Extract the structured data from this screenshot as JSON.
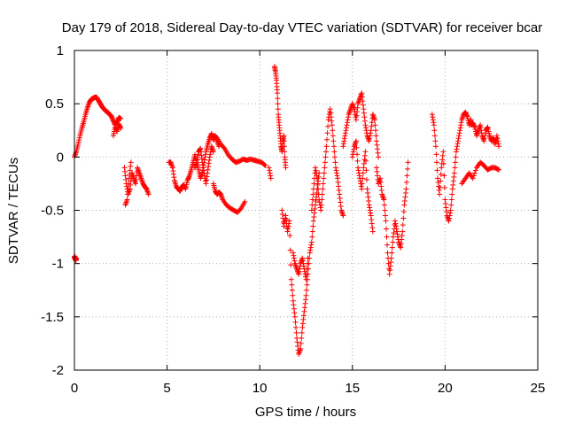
{
  "chart_data": {
    "type": "scatter",
    "title": "Day 179 of 2018, Sidereal Day-to-day VTEC variation (SDTVAR) for receiver bcar",
    "xlabel": "GPS time / hours",
    "ylabel": "SDTVAR / TECUs",
    "xlim": [
      0,
      25
    ],
    "ylim": [
      -2,
      1
    ],
    "xticks": [
      0,
      5,
      10,
      15,
      20,
      25
    ],
    "xtick_labels": [
      "0",
      "5",
      "10",
      "15",
      "20",
      "25"
    ],
    "yticks": [
      1,
      0.5,
      0,
      -0.5,
      -1,
      -1.5,
      -2
    ],
    "ytick_labels": [
      "1",
      "0.5",
      "0",
      "-0.5",
      "-1",
      "-1.5",
      "-2"
    ],
    "grid": true,
    "marker": "+",
    "marker_color": "#ff0000",
    "series": [
      {
        "name": "SDTVAR",
        "segments": [
          {
            "x": [
              0.0,
              0.02,
              0.05,
              0.08,
              0.1
            ],
            "y": [
              -0.95,
              -0.93,
              -0.96,
              -0.97,
              -0.95
            ]
          },
          {
            "x": [
              0.0,
              0.1,
              0.2,
              0.3,
              0.4,
              0.5,
              0.6,
              0.7,
              0.8,
              0.9,
              1.0,
              1.1,
              1.2,
              1.3,
              1.4,
              1.5,
              1.6,
              1.7,
              1.8,
              1.9,
              2.0,
              2.1,
              2.2,
              2.3,
              2.4,
              2.5
            ],
            "y": [
              0.0,
              0.05,
              0.12,
              0.2,
              0.27,
              0.33,
              0.4,
              0.46,
              0.51,
              0.54,
              0.55,
              0.56,
              0.56,
              0.53,
              0.5,
              0.47,
              0.45,
              0.43,
              0.42,
              0.4,
              0.38,
              0.34,
              0.3,
              0.33,
              0.37,
              0.36
            ]
          },
          {
            "x": [
              2.1,
              2.2,
              2.3,
              2.4,
              2.5
            ],
            "y": [
              0.2,
              0.28,
              0.24,
              0.31,
              0.27
            ]
          },
          {
            "x": [
              2.7,
              2.8,
              2.9,
              3.0,
              3.1,
              3.2,
              3.3,
              3.4,
              3.5,
              3.6,
              3.7,
              3.8,
              3.9,
              4.0
            ],
            "y": [
              -0.1,
              -0.25,
              -0.35,
              -0.3,
              -0.15,
              -0.2,
              -0.25,
              -0.1,
              -0.15,
              -0.2,
              -0.25,
              -0.28,
              -0.3,
              -0.35
            ]
          },
          {
            "x": [
              2.75,
              2.85,
              2.95,
              3.05
            ],
            "y": [
              -0.45,
              -0.4,
              -0.2,
              -0.05
            ]
          },
          {
            "x": [
              5.1,
              5.2,
              5.3,
              5.4,
              5.5,
              5.6,
              5.7,
              5.8,
              5.9,
              6.0,
              6.1,
              6.2,
              6.3,
              6.4,
              6.5,
              6.6,
              6.7,
              6.8,
              6.9,
              7.0,
              7.1,
              7.2,
              7.3,
              7.4,
              7.5,
              7.6,
              7.7,
              7.8
            ],
            "y": [
              -0.05,
              -0.05,
              -0.1,
              -0.22,
              -0.28,
              -0.3,
              -0.32,
              -0.28,
              -0.26,
              -0.3,
              -0.22,
              -0.18,
              -0.12,
              -0.05,
              0.02,
              -0.05,
              -0.12,
              -0.2,
              -0.15,
              -0.05,
              0.05,
              0.12,
              0.18,
              0.22,
              0.16,
              0.2,
              0.15,
              0.1
            ]
          },
          {
            "x": [
              6.5,
              6.6,
              6.7,
              6.8,
              6.9,
              7.0,
              7.1,
              7.2,
              7.3,
              7.4,
              7.5
            ],
            "y": [
              -0.1,
              -0.05,
              0.05,
              0.08,
              -0.05,
              -0.15,
              -0.25,
              -0.12,
              0.0,
              0.1,
              0.05
            ]
          },
          {
            "x": [
              7.5,
              7.7,
              7.9,
              8.1,
              8.3,
              8.5,
              8.7,
              8.9,
              9.1,
              9.3,
              9.5,
              9.7,
              9.9,
              10.1,
              10.3
            ],
            "y": [
              0.2,
              0.18,
              0.12,
              0.08,
              0.02,
              -0.02,
              -0.05,
              -0.04,
              -0.02,
              -0.03,
              -0.02,
              -0.03,
              -0.04,
              -0.05,
              -0.08
            ]
          },
          {
            "x": [
              7.5,
              7.6,
              7.7,
              7.8,
              7.9,
              8.0,
              8.2,
              8.4,
              8.6,
              8.8,
              9.0,
              9.2
            ],
            "y": [
              -0.25,
              -0.32,
              -0.35,
              -0.33,
              -0.35,
              -0.4,
              -0.45,
              -0.48,
              -0.5,
              -0.52,
              -0.48,
              -0.42
            ]
          },
          {
            "x": [
              10.5,
              10.6
            ],
            "y": [
              -0.1,
              -0.2
            ]
          },
          {
            "x": [
              10.8,
              10.85,
              10.9,
              10.95,
              11.0,
              11.05,
              11.1,
              11.15,
              11.2,
              11.25,
              11.3,
              11.35,
              11.4
            ],
            "y": [
              0.85,
              0.8,
              0.72,
              0.6,
              0.4,
              0.3,
              0.2,
              0.1,
              0.05,
              0.15,
              0.2,
              0.0,
              -0.1
            ]
          },
          {
            "x": [
              11.2,
              11.3,
              11.4,
              11.5,
              11.6,
              11.7,
              11.8,
              11.9,
              12.0,
              12.1,
              12.2,
              12.3,
              12.4,
              12.5,
              12.6,
              12.7,
              12.8,
              12.9,
              13.0,
              13.1,
              13.2
            ],
            "y": [
              -0.5,
              -0.65,
              -0.55,
              -0.7,
              -0.6,
              -1.15,
              -1.35,
              -1.5,
              -1.7,
              -1.85,
              -1.8,
              -1.6,
              -1.45,
              -1.3,
              -1.1,
              -0.9,
              -0.8,
              -0.6,
              -0.45,
              -0.3,
              -0.15
            ]
          },
          {
            "x": [
              11.8,
              11.9,
              12.0,
              12.1,
              12.2,
              12.3,
              12.4,
              12.5,
              12.6
            ],
            "y": [
              -0.9,
              -1.0,
              -1.05,
              -1.1,
              -1.0,
              -0.95,
              -1.05,
              -1.15,
              -0.95
            ]
          },
          {
            "x": [
              12.8,
              12.9,
              13.0,
              13.1,
              13.2,
              13.3,
              13.4,
              13.5,
              13.6,
              13.7,
              13.8,
              13.9,
              14.0,
              14.1,
              14.2,
              14.3,
              14.4,
              14.5
            ],
            "y": [
              -0.5,
              -0.3,
              -0.1,
              -0.2,
              -0.4,
              -0.5,
              -0.3,
              -0.1,
              0.1,
              0.35,
              0.45,
              0.3,
              0.1,
              -0.1,
              -0.2,
              -0.35,
              -0.5,
              -0.55
            ]
          },
          {
            "x": [
              14.5,
              14.6,
              14.7,
              14.8,
              14.9,
              15.0,
              15.1,
              15.2,
              15.3,
              15.4,
              15.5,
              15.6,
              15.7,
              15.8,
              15.9,
              16.0,
              16.1,
              16.2,
              16.3,
              16.4
            ],
            "y": [
              0.1,
              0.2,
              0.3,
              0.4,
              0.45,
              0.5,
              0.45,
              0.35,
              0.5,
              0.55,
              0.6,
              0.45,
              0.3,
              0.2,
              0.15,
              0.25,
              0.4,
              0.35,
              0.15,
              0.0
            ]
          },
          {
            "x": [
              15.0,
              15.1,
              15.2,
              15.3,
              15.4,
              15.5,
              15.6,
              15.7,
              15.8,
              15.9,
              16.0,
              16.1
            ],
            "y": [
              0.0,
              0.1,
              0.15,
              -0.1,
              -0.2,
              -0.3,
              -0.1,
              0.05,
              -0.3,
              -0.45,
              -0.55,
              -0.7
            ]
          },
          {
            "x": [
              16.3,
              16.4,
              16.5,
              16.6,
              16.7,
              16.8,
              16.9,
              17.0,
              17.1,
              17.2,
              17.3,
              17.4,
              17.5,
              17.6,
              17.7,
              17.8,
              17.9,
              18.0
            ],
            "y": [
              -0.1,
              -0.25,
              -0.2,
              -0.35,
              -0.4,
              -0.6,
              -0.9,
              -1.1,
              -0.95,
              -0.75,
              -0.6,
              -0.7,
              -0.8,
              -0.85,
              -0.7,
              -0.45,
              -0.3,
              -0.05
            ]
          },
          {
            "x": [
              19.3,
              19.4,
              19.5,
              19.6,
              19.7,
              19.8,
              19.9,
              20.0,
              20.1,
              20.2,
              20.3,
              20.4,
              20.5,
              20.6,
              20.7,
              20.8,
              20.9,
              21.0,
              21.1,
              21.2,
              21.3,
              21.4
            ],
            "y": [
              0.4,
              0.3,
              0.1,
              -0.2,
              -0.35,
              -0.1,
              0.05,
              -0.4,
              -0.55,
              -0.6,
              -0.5,
              -0.3,
              -0.15,
              0.05,
              0.15,
              0.25,
              0.35,
              0.4,
              0.42,
              0.38,
              0.3,
              0.35
            ]
          },
          {
            "x": [
              21.4,
              21.5,
              21.6,
              21.7,
              21.8,
              21.9,
              22.0,
              22.1,
              22.2,
              22.3,
              22.4,
              22.5,
              22.6,
              22.7,
              22.8,
              22.9
            ],
            "y": [
              0.3,
              0.32,
              0.28,
              0.2,
              0.25,
              0.3,
              0.2,
              0.15,
              0.25,
              0.28,
              0.2,
              0.15,
              0.18,
              0.12,
              0.2,
              0.1
            ]
          },
          {
            "x": [
              20.9,
              21.1,
              21.3,
              21.5,
              21.7,
              21.9,
              22.1,
              22.3,
              22.5,
              22.7,
              22.9
            ],
            "y": [
              -0.25,
              -0.2,
              -0.15,
              -0.2,
              -0.1,
              -0.05,
              -0.08,
              -0.12,
              -0.1,
              -0.1,
              -0.12
            ]
          }
        ]
      }
    ]
  }
}
